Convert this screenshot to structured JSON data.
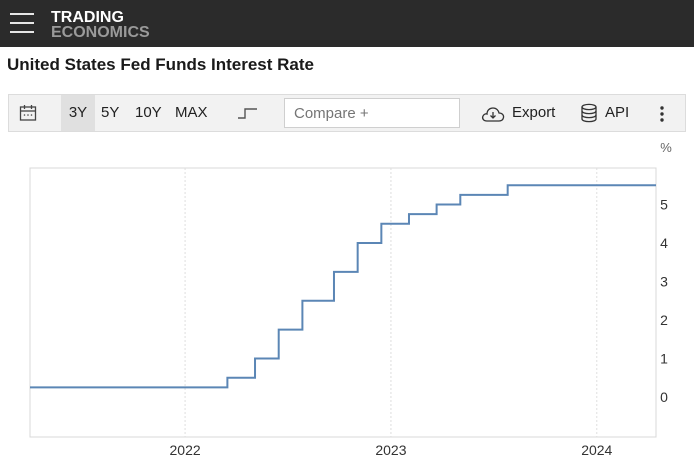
{
  "header": {
    "logo_line1": "TRADING",
    "logo_line2": "ECONOMICS"
  },
  "page": {
    "title": "United States Fed Funds Interest Rate"
  },
  "toolbar": {
    "ranges": [
      "3Y",
      "5Y",
      "10Y",
      "MAX"
    ],
    "active_range": "3Y",
    "compare_placeholder": "Compare +",
    "export_label": "Export",
    "api_label": "API"
  },
  "chart_data": {
    "type": "line",
    "step": true,
    "ylabel": "%",
    "ylim": [
      -1,
      6
    ],
    "yticks": [
      0,
      1,
      2,
      3,
      4,
      5
    ],
    "xticks": [
      "2022",
      "2023",
      "2024"
    ],
    "xlim": [
      "2021-04-01",
      "2024-04-15"
    ],
    "grid": true,
    "color": "#5b86b5",
    "series": [
      {
        "points": [
          {
            "x": "2021-04-01",
            "y": 0.25
          },
          {
            "x": "2022-03-17",
            "y": 0.5
          },
          {
            "x": "2022-05-05",
            "y": 1.0
          },
          {
            "x": "2022-06-16",
            "y": 1.75
          },
          {
            "x": "2022-07-28",
            "y": 2.5
          },
          {
            "x": "2022-09-22",
            "y": 3.25
          },
          {
            "x": "2022-11-03",
            "y": 4.0
          },
          {
            "x": "2022-12-15",
            "y": 4.5
          },
          {
            "x": "2023-02-02",
            "y": 4.75
          },
          {
            "x": "2023-03-23",
            "y": 5.0
          },
          {
            "x": "2023-05-04",
            "y": 5.25
          },
          {
            "x": "2023-07-27",
            "y": 5.5
          },
          {
            "x": "2024-04-15",
            "y": 5.5
          }
        ]
      }
    ]
  }
}
